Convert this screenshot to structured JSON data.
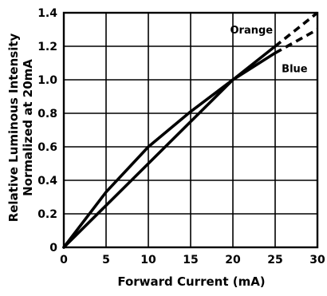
{
  "chart_data": {
    "type": "line",
    "title": "",
    "xlabel": "Forward Current (mA)",
    "ylabel_line1": "Relative Luminous Intensity",
    "ylabel_line2": "Normalized at 20mA",
    "xlim": [
      0,
      30
    ],
    "ylim": [
      0,
      1.4
    ],
    "x_ticks": [
      0,
      5,
      10,
      15,
      20,
      25,
      30
    ],
    "y_ticks": [
      0,
      0.2,
      0.4,
      0.6,
      0.8,
      1.0,
      1.2,
      1.4
    ],
    "x_tick_labels": [
      "0",
      "5",
      "10",
      "15",
      "20",
      "25",
      "30"
    ],
    "y_tick_labels": [
      "0",
      "0.2",
      "0.4",
      "0.6",
      "0.8",
      "1.0",
      "1.2",
      "1.4"
    ],
    "grid": true,
    "series": [
      {
        "name": "Orange",
        "solid": {
          "x": [
            0,
            5,
            10,
            15,
            20,
            25
          ],
          "y": [
            0,
            0.25,
            0.5,
            0.75,
            1.0,
            1.2
          ]
        },
        "dashed": {
          "x": [
            25,
            30
          ],
          "y": [
            1.2,
            1.4
          ]
        }
      },
      {
        "name": "Blue",
        "solid": {
          "x": [
            0,
            5,
            10,
            15,
            20,
            25
          ],
          "y": [
            0,
            0.33,
            0.6,
            0.81,
            1.0,
            1.16
          ]
        },
        "dashed": {
          "x": [
            25,
            30
          ],
          "y": [
            1.16,
            1.3
          ]
        }
      }
    ],
    "colors": {
      "line": "#000000",
      "grid": "#000000",
      "background": "#ffffff"
    }
  }
}
